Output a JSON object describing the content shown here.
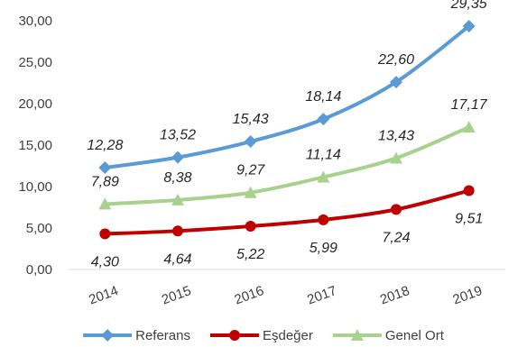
{
  "chart_data": {
    "type": "line",
    "x": [
      "2014",
      "2015",
      "2016",
      "2017",
      "2018",
      "2019"
    ],
    "ylim": [
      0,
      30
    ],
    "yticks": [
      "0,00",
      "5,00",
      "10,00",
      "15,00",
      "20,00",
      "25,00",
      "30,00"
    ],
    "grid": false,
    "legend_position": "bottom",
    "series": [
      {
        "name": "Referans",
        "color": "#5B9BD5",
        "marker": "diamond",
        "label_position": "above",
        "values": [
          12.28,
          13.52,
          15.43,
          18.14,
          22.6,
          29.35
        ],
        "labels": [
          "12,28",
          "13,52",
          "15,43",
          "18,14",
          "22,60",
          "29,35"
        ]
      },
      {
        "name": "Eşdeğer",
        "color": "#C00000",
        "marker": "circle",
        "label_position": "below",
        "values": [
          4.3,
          4.64,
          5.22,
          5.99,
          7.24,
          9.51
        ],
        "labels": [
          "4,30",
          "4,64",
          "5,22",
          "5,99",
          "7,24",
          "9,51"
        ]
      },
      {
        "name": "Genel Ort",
        "color": "#A9D18E",
        "marker": "triangle",
        "label_position": "above",
        "values": [
          7.89,
          8.38,
          9.27,
          11.14,
          13.43,
          17.17
        ],
        "labels": [
          "7,89",
          "8,38",
          "9,27",
          "11,14",
          "13,43",
          "17,17"
        ]
      }
    ]
  }
}
